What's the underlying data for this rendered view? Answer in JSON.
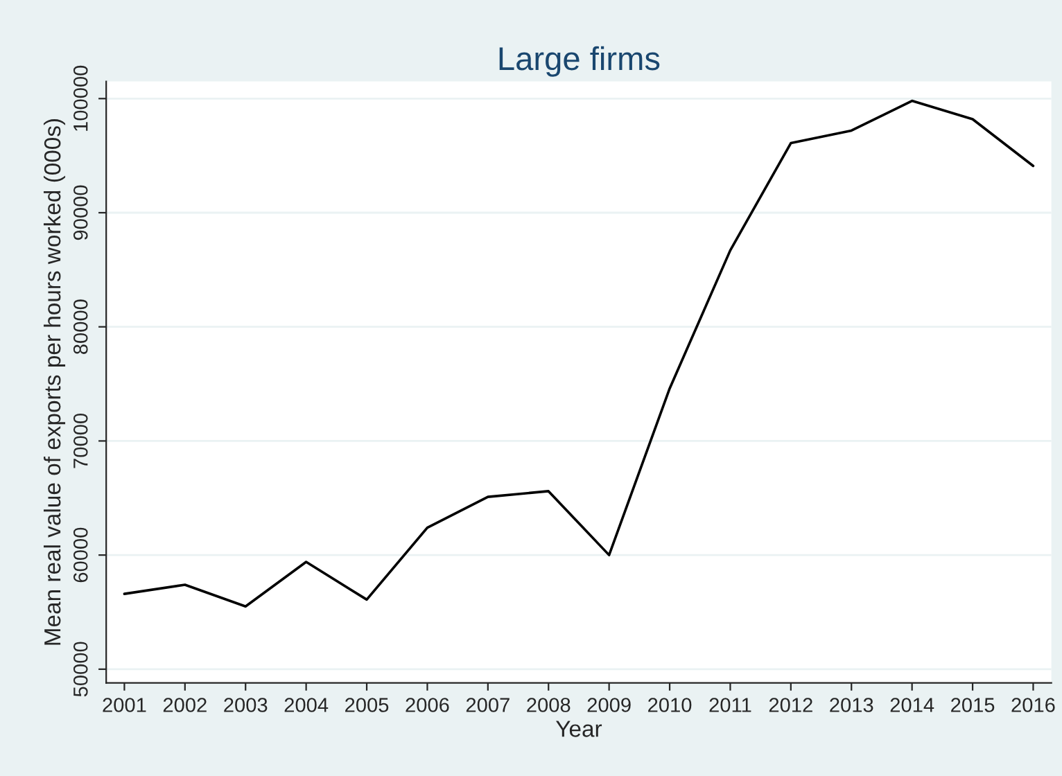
{
  "chart_data": {
    "type": "line",
    "title": "Large firms",
    "xlabel": "Year",
    "ylabel": "Mean real value of exports per hours worked (000s)",
    "x": [
      2001,
      2002,
      2003,
      2004,
      2005,
      2006,
      2007,
      2008,
      2009,
      2010,
      2011,
      2012,
      2013,
      2014,
      2015,
      2016
    ],
    "series": [
      {
        "color": "#000000",
        "values": [
          56600,
          57400,
          55500,
          59400,
          56100,
          62400,
          65100,
          65600,
          60000,
          74600,
          86700,
          96100,
          97200,
          99800,
          98200,
          94100
        ]
      }
    ],
    "xlim": [
      2000.7,
      2016.3
    ],
    "xticks": [
      2001,
      2002,
      2003,
      2004,
      2005,
      2006,
      2007,
      2008,
      2009,
      2010,
      2011,
      2012,
      2013,
      2014,
      2015,
      2016
    ],
    "ylim": [
      48800,
      101500
    ],
    "yticks": [
      50000,
      60000,
      70000,
      80000,
      90000,
      100000
    ],
    "grid": "y",
    "legend": false,
    "marker": "none",
    "line_style": "solid"
  }
}
